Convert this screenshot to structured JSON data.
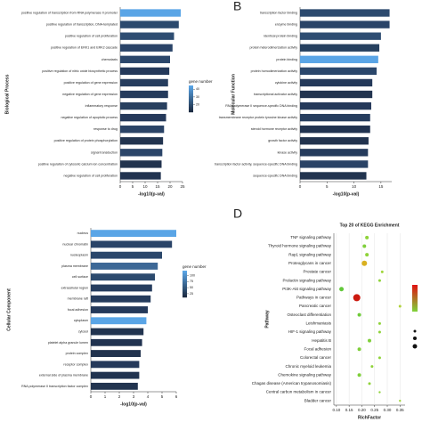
{
  "chart_data": [
    {
      "type": "bar",
      "horizontal": true,
      "ylabel": "Biological Process",
      "xlabel": "-log10(p-val)",
      "categories": [
        "positive regulation of transcription from RNA polymerase II promoter",
        "positive regulation of transcription, DNA-templated",
        "positive regulation of cell proliferation",
        "positive regulation of ERK1 and ERK2 cascade",
        "chemotaxis",
        "positive regulation of nitric oxide biosynthetic process",
        "positive regulation of gene expression",
        "negative regulation of gene expression",
        "inflammatory response",
        "negative regulation of apoptotic process",
        "response to drug",
        "positive regulation of protein phosphorylation",
        "signal transduction",
        "positive regulation of cytosolic calcium ion concentration",
        "negative regulation of cell proliferation"
      ],
      "values": [
        24.3,
        23.5,
        21.6,
        21,
        20,
        19.7,
        19.2,
        19.2,
        18.8,
        18.4,
        17.6,
        17.2,
        16.9,
        16.6,
        16.3
      ],
      "colors": [
        "#5aa5e6",
        "#2c4a6e",
        "#2e4d72",
        "#2a4468",
        "#2b476b",
        "#24395a",
        "#263d5e",
        "#253b5c",
        "#28405f",
        "#25395a",
        "#2a4366",
        "#22344f",
        "#2b4569",
        "#22334e",
        "#213350"
      ],
      "xlim": [
        0,
        25
      ],
      "xticks": [
        0,
        5,
        10,
        15,
        20,
        25
      ],
      "legend_title": "gene number",
      "colorlim": [
        10,
        45
      ],
      "legend_ticks": [
        20,
        30,
        40
      ]
    },
    {
      "type": "bar",
      "horizontal": true,
      "panel": "B",
      "ylabel": "Molecular Function",
      "xlabel": "-log10(p-val)",
      "categories": [
        "transcription factor binding",
        "enzyme binding",
        "identical protein binding",
        "protein heterodimerization activity",
        "protein binding",
        "protein homodimerization activity",
        "cytokine activity",
        "transcriptional activator activity",
        "RNA polymerase II sequence-specific DNA binding",
        "transmembrane receptor protein tyrosine kinase activity",
        "steroid hormone receptor activity",
        "growth factor activity",
        "kinase activity",
        "transcription factor activity, sequence-specific DNA binding",
        "sequence-specific DNA binding"
      ],
      "values": [
        16.6,
        16.6,
        15,
        14.7,
        14.5,
        14.2,
        13.4,
        13.4,
        13.2,
        13,
        13,
        12.7,
        12.6,
        12.6,
        12.3
      ],
      "colors": [
        "#2c4a6e",
        "#2a4468",
        "#2e4d72",
        "#26405f",
        "#5aa5e6",
        "#2b476b",
        "#24395a",
        "#22344f",
        "#25395a",
        "#263d5e",
        "#213350",
        "#22334e",
        "#253b5c",
        "#2a4366",
        "#22344f"
      ],
      "xlim": [
        0,
        17
      ],
      "xticks": [
        0,
        5,
        10,
        15
      ]
    },
    {
      "type": "bar",
      "horizontal": true,
      "ylabel": "Cellular Component",
      "xlabel": "-log10(p-val)",
      "categories": [
        "nucleus",
        "nuclear chromatin",
        "nucleoplasm",
        "plasma membrane",
        "cell surface",
        "extracellular region",
        "membrane raft",
        "focal adhesion",
        "cytoplasm",
        "cytosol",
        "platelet alpha granule lumen",
        "protein complex",
        "receptor complex",
        "external side of plasma membrane",
        "RNA polymerase II transcription factor complex"
      ],
      "values": [
        6,
        5.7,
        5,
        4.7,
        4.5,
        4.3,
        4.2,
        4,
        3.9,
        3.7,
        3.6,
        3.5,
        3.4,
        3.4,
        3.3
      ],
      "colors": [
        "#5aa5e6",
        "#2a4468",
        "#2b476b",
        "#3d6896",
        "#2c4a6e",
        "#263d5e",
        "#253b5c",
        "#24395a",
        "#5aa5e6",
        "#22344f",
        "#213350",
        "#22334e",
        "#25395a",
        "#213350",
        "#22344f"
      ],
      "xlim": [
        0,
        6
      ],
      "xticks": [
        0,
        1,
        2,
        3,
        4,
        5,
        6
      ],
      "legend_title": "gene number",
      "colorlim": [
        10,
        120
      ],
      "legend_ticks": [
        25,
        50,
        75,
        100
      ]
    },
    {
      "type": "scatter",
      "panel": "D",
      "title": "Top 20 of KEGG Enrichment",
      "ylabel": "Pathway",
      "xlabel": "RichFactor",
      "categories": [
        "TNF signaling pathway",
        "Thyroid hormone signaling pathway",
        "Rap1 signaling pathway",
        "Proteoglycans in cancer",
        "Prostate cancer",
        "Prolactin signaling pathway",
        "PI3K-Akt signaling pathway",
        "Pathways in cancer",
        "Pancreatic cancer",
        "Osteoclast differentiation",
        "Leishmaniasis",
        "HIF-1 signaling pathway",
        "Hepatitis B",
        "Focal adhesion",
        "Colorectal cancer",
        "Chronic myeloid leukemia",
        "Chemokine signaling pathway",
        "Chagas disease (American trypanosomiasis)",
        "Central carbon metabolism in cancer",
        "Bladder cancer"
      ],
      "x": [
        0.22,
        0.21,
        0.22,
        0.21,
        0.28,
        0.27,
        0.12,
        0.18,
        0.35,
        0.19,
        0.27,
        0.27,
        0.23,
        0.19,
        0.27,
        0.24,
        0.19,
        0.23,
        0.27,
        0.35
      ],
      "sizes": [
        2,
        2,
        2,
        3,
        1.5,
        1.5,
        2.5,
        4,
        1.5,
        2,
        1.5,
        1.5,
        2,
        2,
        1.5,
        1.5,
        2,
        1.5,
        1.2,
        1.2
      ],
      "colors": [
        "#8fd33a",
        "#7fcf3a",
        "#8fd33a",
        "#d9b020",
        "#9fd53a",
        "#8fd33a",
        "#62c83a",
        "#cc1a10",
        "#b0d23a",
        "#6fcb3a",
        "#8fd33a",
        "#8fd33a",
        "#7fcf3a",
        "#7fcf3a",
        "#8fd33a",
        "#8fd33a",
        "#7fcf3a",
        "#8fd33a",
        "#8fd33a",
        "#9fd53a"
      ],
      "xlim": [
        0.09,
        0.37
      ],
      "xticks": [
        {
          "value": 0.1,
          "label": "0.10"
        },
        0.15,
        {
          "value": 0.2,
          "label": "0.20"
        },
        0.25,
        {
          "value": 0.3,
          "label": "0.30"
        },
        0.35
      ]
    }
  ]
}
